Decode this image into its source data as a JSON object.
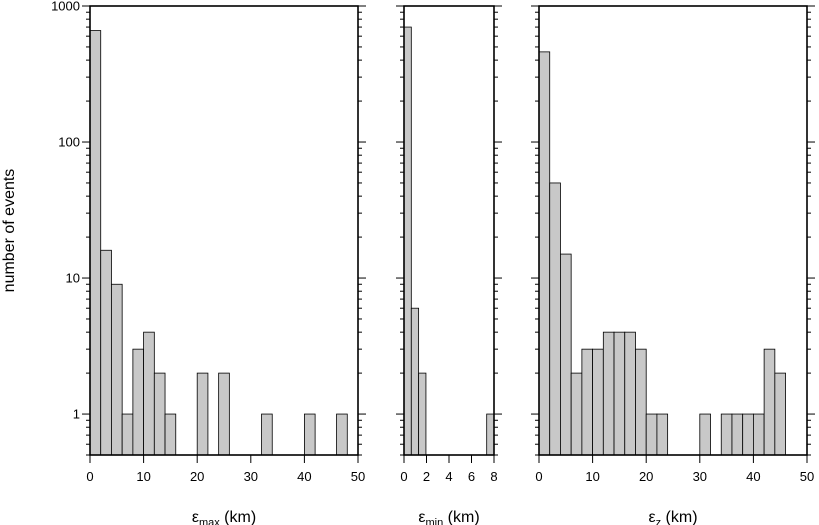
{
  "chart_data": [
    {
      "type": "bar",
      "xlabel_symbol": "ε",
      "xlabel_subscript": "max",
      "xlabel_suffix": " (km)",
      "ylabel": "number of events",
      "yscale": "log",
      "ylim": [
        0.5,
        1000
      ],
      "yticks": [
        1,
        10,
        100,
        1000
      ],
      "yticklabels": [
        "1",
        "10",
        "100",
        "1000"
      ],
      "xlim": [
        0,
        50
      ],
      "xticks": [
        0,
        10,
        20,
        30,
        40,
        50
      ],
      "xticklabels": [
        "0",
        "10",
        "20",
        "30",
        "40",
        "50"
      ],
      "bin_width": 2,
      "bins": [
        {
          "x0": 0,
          "value": 660
        },
        {
          "x0": 2,
          "value": 16
        },
        {
          "x0": 4,
          "value": 9
        },
        {
          "x0": 6,
          "value": 1
        },
        {
          "x0": 8,
          "value": 3
        },
        {
          "x0": 10,
          "value": 4
        },
        {
          "x0": 12,
          "value": 2
        },
        {
          "x0": 14,
          "value": 1
        },
        {
          "x0": 20,
          "value": 2
        },
        {
          "x0": 24,
          "value": 2
        },
        {
          "x0": 32,
          "value": 1
        },
        {
          "x0": 40,
          "value": 1
        },
        {
          "x0": 46,
          "value": 1
        }
      ]
    },
    {
      "type": "bar",
      "xlabel_symbol": "ε",
      "xlabel_subscript": "min",
      "xlabel_suffix": " (km)",
      "yscale": "log",
      "ylim": [
        0.5,
        1000
      ],
      "yticks": [
        1,
        10,
        100,
        1000
      ],
      "xlim": [
        0,
        8
      ],
      "xticks": [
        0,
        2,
        4,
        6,
        8
      ],
      "xticklabels": [
        "0",
        "2",
        "4",
        "6",
        "8"
      ],
      "bin_width": 0.65,
      "bins": [
        {
          "x0": 0,
          "value": 700
        },
        {
          "x0": 0.65,
          "value": 6
        },
        {
          "x0": 1.3,
          "value": 2
        },
        {
          "x0": 7.35,
          "value": 1
        }
      ]
    },
    {
      "type": "bar",
      "xlabel_symbol": "ε",
      "xlabel_subscript": "z",
      "xlabel_suffix": " (km)",
      "yscale": "log",
      "ylim": [
        0.5,
        1000
      ],
      "yticks": [
        1,
        10,
        100,
        1000
      ],
      "xlim": [
        0,
        50
      ],
      "xticks": [
        0,
        10,
        20,
        30,
        40,
        50
      ],
      "xticklabels": [
        "0",
        "10",
        "20",
        "30",
        "40",
        "50"
      ],
      "bin_width": 2,
      "bins": [
        {
          "x0": 0,
          "value": 460
        },
        {
          "x0": 2,
          "value": 50
        },
        {
          "x0": 4,
          "value": 15
        },
        {
          "x0": 6,
          "value": 2
        },
        {
          "x0": 8,
          "value": 3
        },
        {
          "x0": 10,
          "value": 3
        },
        {
          "x0": 12,
          "value": 4
        },
        {
          "x0": 14,
          "value": 4
        },
        {
          "x0": 16,
          "value": 4
        },
        {
          "x0": 18,
          "value": 3
        },
        {
          "x0": 20,
          "value": 1
        },
        {
          "x0": 22,
          "value": 1
        },
        {
          "x0": 30,
          "value": 1
        },
        {
          "x0": 34,
          "value": 1
        },
        {
          "x0": 36,
          "value": 1
        },
        {
          "x0": 38,
          "value": 1
        },
        {
          "x0": 40,
          "value": 1
        },
        {
          "x0": 42,
          "value": 3
        },
        {
          "x0": 44,
          "value": 2
        }
      ]
    }
  ],
  "colors": {
    "bar_fill": "#c8c8c8",
    "bar_stroke": "#000000",
    "frame": "#000000"
  }
}
